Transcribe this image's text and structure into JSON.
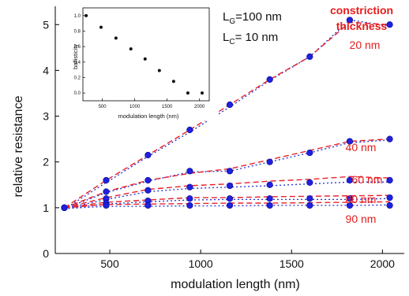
{
  "chart_data": [
    {
      "type": "line",
      "xlabel": "modulation length (nm)",
      "ylabel": "relative resistance",
      "xlim": [
        200,
        2120
      ],
      "ylim": [
        0,
        5.4
      ],
      "xticks": [
        "500",
        "1000",
        "1500",
        "2000"
      ],
      "yticks": [
        "0",
        "1",
        "2",
        "3",
        "4",
        "5"
      ],
      "x": [
        250,
        480,
        710,
        940,
        1160,
        1380,
        1600,
        1820,
        2040
      ],
      "legend_title": "constriction thickness",
      "line_colors": [
        "#e8202a",
        "#2030d0"
      ],
      "marker_color": "#2020e0",
      "label_color": "#e51d1d",
      "series": [
        {
          "name": "20 nm",
          "values": [
            1.0,
            1.6,
            2.15,
            2.7,
            3.25,
            3.8,
            4.3,
            5.1,
            5.0
          ],
          "line_red": [
            1.0,
            1.6,
            2.15,
            2.7,
            3.25,
            3.8,
            4.3,
            5.05,
            5.0
          ],
          "line_blue": [
            0.97,
            1.55,
            2.12,
            2.65,
            3.2,
            3.78,
            4.3,
            5.1,
            4.97
          ]
        },
        {
          "name": "40 nm",
          "values": [
            1.0,
            1.35,
            1.6,
            1.8,
            1.8,
            2.0,
            2.2,
            2.45,
            2.5
          ],
          "line_red": [
            1.0,
            1.35,
            1.6,
            1.75,
            1.85,
            2.05,
            2.25,
            2.45,
            2.5
          ],
          "line_blue": [
            0.98,
            1.33,
            1.58,
            1.78,
            1.8,
            2.0,
            2.2,
            2.42,
            2.48
          ]
        },
        {
          "name": "60 nm",
          "values": [
            1.0,
            1.2,
            1.38,
            1.45,
            1.48,
            1.5,
            1.55,
            1.6,
            1.6
          ],
          "line_red": [
            1.0,
            1.22,
            1.4,
            1.48,
            1.52,
            1.58,
            1.62,
            1.68,
            1.65
          ],
          "line_blue": [
            0.98,
            1.18,
            1.35,
            1.42,
            1.45,
            1.48,
            1.52,
            1.56,
            1.56
          ]
        },
        {
          "name": "80 nm",
          "values": [
            1.0,
            1.1,
            1.15,
            1.2,
            1.2,
            1.2,
            1.2,
            1.2,
            1.22
          ],
          "line_red": [
            1.0,
            1.12,
            1.17,
            1.22,
            1.22,
            1.24,
            1.25,
            1.26,
            1.27
          ],
          "line_blue": [
            0.98,
            1.08,
            1.13,
            1.17,
            1.18,
            1.18,
            1.18,
            1.18,
            1.2
          ]
        },
        {
          "name": "90 nm",
          "values": [
            1.0,
            1.05,
            1.05,
            1.05,
            1.05,
            1.05,
            1.05,
            1.05,
            1.05
          ],
          "line_red": [
            1.0,
            1.07,
            1.08,
            1.09,
            1.1,
            1.1,
            1.11,
            1.12,
            1.13
          ],
          "line_blue": [
            0.98,
            1.03,
            1.03,
            1.04,
            1.04,
            1.05,
            1.05,
            1.05,
            1.06
          ]
        }
      ],
      "annotations": [
        {
          "main": "L",
          "sub": "G",
          "rest": "=100 nm"
        },
        {
          "main": "L",
          "sub": "C",
          "rest": "= 10 nm"
        }
      ]
    },
    {
      "type": "scatter",
      "xlabel": "modulation length (nm)",
      "ylabel": "ballisticity",
      "xlim": [
        200,
        2150
      ],
      "ylim": [
        -0.1,
        1.1
      ],
      "xticks": [
        "500",
        "1000",
        "1500",
        "2000"
      ],
      "yticks": [
        "0.0",
        "0.2",
        "0.4",
        "0.6",
        "0.8",
        "1.0"
      ],
      "x": [
        250,
        480,
        710,
        940,
        1160,
        1380,
        1600,
        1820,
        2040
      ],
      "values": [
        1.0,
        0.85,
        0.71,
        0.57,
        0.44,
        0.29,
        0.15,
        0.0,
        0.0
      ]
    }
  ]
}
